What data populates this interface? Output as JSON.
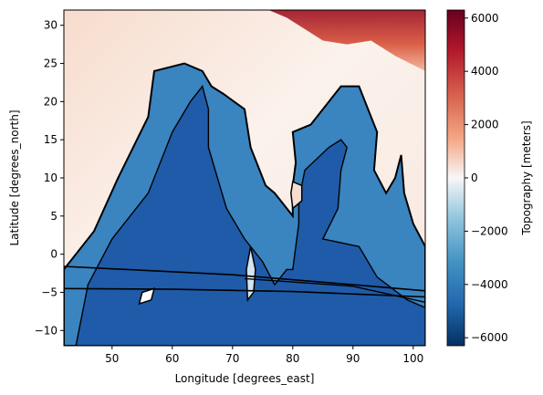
{
  "chart_data": {
    "type": "heatmap",
    "title": "",
    "xlabel": "Longitude [degrees_east]",
    "ylabel": "Latitude [degrees_north]",
    "xlim": [
      42,
      102
    ],
    "ylim": [
      -12,
      32
    ],
    "x_ticks": [
      50,
      60,
      70,
      80,
      90,
      100
    ],
    "y_ticks": [
      -10,
      -5,
      0,
      5,
      10,
      15,
      20,
      25,
      30
    ],
    "colorbar": {
      "label": "Topography [meters]",
      "range": [
        -6300,
        6300
      ],
      "ticks": [
        -6000,
        -4000,
        -2000,
        0,
        2000,
        4000,
        6000
      ],
      "tick_labels": [
        "−6000",
        "−4000",
        "−2000",
        "0",
        "2000",
        "4000",
        "6000"
      ],
      "colormap": "RdBu_r"
    },
    "colors": {
      "deep": "#1f5ba8",
      "mid": "#3a84c0",
      "shallow": "#8ec0de",
      "coast": "#d2e5f1",
      "land_low": "#f9eee8",
      "land_mid": "#f3b497",
      "land_high": "#a11a2c",
      "contour": "#000000"
    },
    "contour_levels": [
      -4000,
      -2000,
      0
    ],
    "regions": {
      "arabian_sea": [
        [
          42,
          -12
        ],
        [
          42,
          -2
        ],
        [
          47,
          3
        ],
        [
          51,
          10
        ],
        [
          56,
          18
        ],
        [
          57,
          24
        ],
        [
          62,
          25
        ],
        [
          65,
          24
        ],
        [
          66.5,
          22
        ],
        [
          68.5,
          21
        ],
        [
          72,
          19
        ],
        [
          73,
          14
        ],
        [
          75.5,
          9
        ],
        [
          77,
          8
        ],
        [
          80,
          5
        ],
        [
          80,
          9
        ],
        [
          80.5,
          12
        ],
        [
          80,
          16
        ],
        [
          83,
          17
        ],
        [
          86,
          20
        ],
        [
          88,
          22
        ],
        [
          91,
          22
        ],
        [
          92,
          20
        ],
        [
          94,
          16
        ],
        [
          93.5,
          11
        ],
        [
          95.5,
          8
        ],
        [
          97,
          10
        ],
        [
          98,
          13
        ],
        [
          98.5,
          8
        ],
        [
          100,
          4
        ],
        [
          102,
          1
        ],
        [
          102,
          -12
        ]
      ],
      "deep_core": [
        [
          44,
          -12
        ],
        [
          46,
          -4
        ],
        [
          50,
          2
        ],
        [
          56,
          8
        ],
        [
          60,
          16
        ],
        [
          63,
          20
        ],
        [
          65,
          22
        ],
        [
          66,
          19
        ],
        [
          66,
          14
        ],
        [
          69,
          6
        ],
        [
          72,
          2
        ],
        [
          75,
          -1
        ],
        [
          77,
          -4
        ],
        [
          79,
          -2
        ],
        [
          80,
          -2
        ],
        [
          81,
          4
        ],
        [
          81,
          7
        ],
        [
          82,
          11
        ],
        [
          86,
          14
        ],
        [
          88,
          15
        ],
        [
          89,
          14
        ],
        [
          88,
          11
        ],
        [
          87.5,
          6
        ],
        [
          85,
          2
        ],
        [
          91,
          1
        ],
        [
          94,
          -3
        ],
        [
          99,
          -6
        ],
        [
          102,
          -7
        ],
        [
          102,
          -12
        ]
      ],
      "madagascar": [
        [
          49.5,
          -12
        ],
        [
          51,
          -12
        ],
        [
          50.5,
          -16
        ],
        [
          49,
          -15
        ]
      ],
      "cape_island": [
        [
          55,
          -5
        ],
        [
          57,
          -4.5
        ],
        [
          56.5,
          -6
        ],
        [
          54.5,
          -6.5
        ]
      ],
      "maldives": [
        [
          72.5,
          -6
        ],
        [
          73.5,
          -5
        ],
        [
          73.8,
          -2
        ],
        [
          73,
          1
        ],
        [
          72.3,
          -2
        ]
      ],
      "sri_lanka": [
        [
          80,
          6
        ],
        [
          81.5,
          7
        ],
        [
          81.5,
          9
        ],
        [
          80,
          9.5
        ],
        [
          79.7,
          8
        ]
      ],
      "lower_arc": [
        [
          42,
          -4.5
        ],
        [
          60,
          -4.6
        ],
        [
          80,
          -4.9
        ],
        [
          102,
          -5.6
        ]
      ],
      "upper_arc": [
        [
          42,
          -1.6
        ],
        [
          70,
          -2.7
        ],
        [
          90,
          -4.0
        ],
        [
          102,
          -4.8
        ]
      ],
      "lower_band": [
        [
          72,
          -3.2
        ],
        [
          90,
          -4.2
        ],
        [
          102,
          -6.3
        ]
      ]
    }
  }
}
